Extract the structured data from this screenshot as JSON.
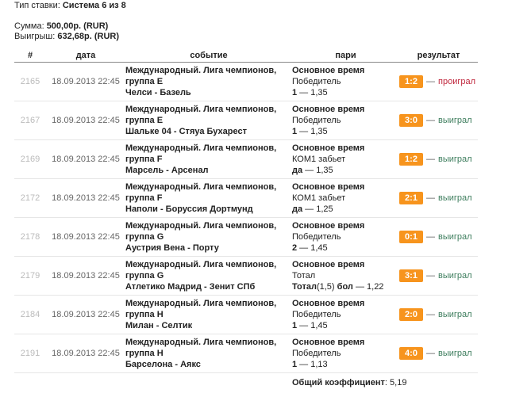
{
  "bet_type": {
    "label": "Тип ставки:",
    "value": "Система 6 из 8"
  },
  "sum": {
    "label": "Сумма:",
    "value": "500,00р. (RUR)"
  },
  "win": {
    "label": "Выигрыш:",
    "value": "632,68р. (RUR)"
  },
  "columns": [
    "#",
    "дата",
    "событие",
    "пари",
    "результат"
  ],
  "rows": [
    {
      "num": "2165",
      "date": "18.09.2013 22:45",
      "league": "Международный. Лига чемпионов, группа E",
      "match": "Челси - Базель",
      "period": "Основное время",
      "market": "Победитель",
      "pick": "1",
      "odds": "1,35",
      "score": "1:2",
      "result": "проиграл",
      "status": "lost"
    },
    {
      "num": "2167",
      "date": "18.09.2013 22:45",
      "league": "Международный. Лига чемпионов, группа E",
      "match": "Шальке 04 - Стяуа Бухарест",
      "period": "Основное время",
      "market": "Победитель",
      "pick": "1",
      "odds": "1,35",
      "score": "3:0",
      "result": "выиграл",
      "status": "won"
    },
    {
      "num": "2169",
      "date": "18.09.2013 22:45",
      "league": "Международный. Лига чемпионов, группа F",
      "match": "Марсель - Арсенал",
      "period": "Основное время",
      "market": "КОМ1 забьет",
      "pick": "да",
      "odds": "1,35",
      "score": "1:2",
      "result": "выиграл",
      "status": "won"
    },
    {
      "num": "2172",
      "date": "18.09.2013 22:45",
      "league": "Международный. Лига чемпионов, группа F",
      "match": "Наполи - Боруссия Дортмунд",
      "period": "Основное время",
      "market": "КОМ1 забьет",
      "pick": "да",
      "odds": "1,25",
      "score": "2:1",
      "result": "выиграл",
      "status": "won"
    },
    {
      "num": "2178",
      "date": "18.09.2013 22:45",
      "league": "Международный. Лига чемпионов, группа G",
      "match": "Аустрия Вена - Порту",
      "period": "Основное время",
      "market": "Победитель",
      "pick": "2",
      "odds": "1,45",
      "score": "0:1",
      "result": "выиграл",
      "status": "won"
    },
    {
      "num": "2179",
      "date": "18.09.2013 22:45",
      "league": "Международный. Лига чемпионов, группа G",
      "match": "Атлетико Мадрид - Зенит СПб",
      "period": "Основное время",
      "market": "Тотал",
      "pick": "Тотал",
      "pick_param": "(1,5)",
      "pick_suffix": " бол",
      "odds": "1,22",
      "score": "3:1",
      "result": "выиграл",
      "status": "won"
    },
    {
      "num": "2184",
      "date": "18.09.2013 22:45",
      "league": "Международный. Лига чемпионов, группа H",
      "match": "Милан - Селтик",
      "period": "Основное время",
      "market": "Победитель",
      "pick": "1",
      "odds": "1,45",
      "score": "2:0",
      "result": "выиграл",
      "status": "won"
    },
    {
      "num": "2191",
      "date": "18.09.2013 22:45",
      "league": "Международный. Лига чемпионов, группа H",
      "match": "Барселона - Аякс",
      "period": "Основное время",
      "market": "Победитель",
      "pick": "1",
      "odds": "1,13",
      "score": "4:0",
      "result": "выиграл",
      "status": "won"
    }
  ],
  "total": {
    "label": "Общий коэффициент",
    "value": "5,19"
  },
  "colors": {
    "badge": "#f7941d",
    "lost": "#c0283e",
    "won": "#3d7d5d"
  }
}
